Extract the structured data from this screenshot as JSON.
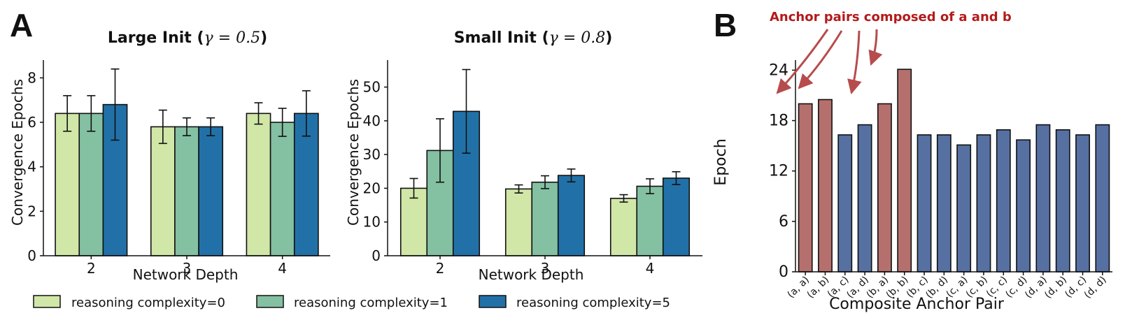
{
  "panels": {
    "A": {
      "label": "A"
    },
    "B": {
      "label": "B"
    }
  },
  "colors": {
    "complexity0": "#d1e7a8",
    "complexity1": "#84c0a2",
    "complexity5": "#2171a8",
    "highlight": "#b5706e",
    "normal": "#5670a2",
    "annotation": "#b41a1a",
    "arrow": "#b74c4c"
  },
  "legend": {
    "items": [
      "reasoning complexity=0",
      "reasoning complexity=1",
      "reasoning complexity=5"
    ]
  },
  "chart_data": [
    {
      "id": "large",
      "type": "bar",
      "title_prefix": "Large Init (",
      "title_math": "γ = 0.5",
      "title_suffix": ")",
      "xlabel": "Network Depth",
      "ylabel": "Convergence Epochs",
      "categories": [
        "2",
        "3",
        "4"
      ],
      "ylim": [
        0,
        8.8
      ],
      "yticks": [
        0,
        2,
        4,
        6,
        8
      ],
      "series": [
        {
          "name": "reasoning complexity=0",
          "values": [
            6.4,
            5.8,
            6.4
          ],
          "errors": [
            0.8,
            0.75,
            0.48
          ]
        },
        {
          "name": "reasoning complexity=1",
          "values": [
            6.4,
            5.8,
            6.0
          ],
          "errors": [
            0.8,
            0.4,
            0.63
          ]
        },
        {
          "name": "reasoning complexity=5",
          "values": [
            6.8,
            5.8,
            6.4
          ],
          "errors": [
            1.6,
            0.4,
            1.02
          ]
        }
      ]
    },
    {
      "id": "small",
      "type": "bar",
      "title_prefix": "Small Init (",
      "title_math": "γ = 0.8",
      "title_suffix": ")",
      "xlabel": "Network Depth",
      "ylabel": "Convergence Epochs",
      "categories": [
        "2",
        "3",
        "4"
      ],
      "ylim": [
        0,
        58
      ],
      "yticks": [
        0,
        10,
        20,
        30,
        40,
        50
      ],
      "series": [
        {
          "name": "reasoning complexity=0",
          "values": [
            20.0,
            19.8,
            17.0
          ],
          "errors": [
            2.9,
            1.2,
            1.1
          ]
        },
        {
          "name": "reasoning complexity=1",
          "values": [
            31.2,
            21.8,
            20.6
          ],
          "errors": [
            9.4,
            1.9,
            2.2
          ]
        },
        {
          "name": "reasoning complexity=5",
          "values": [
            42.8,
            23.8,
            23.0
          ],
          "errors": [
            12.4,
            1.9,
            1.9
          ]
        }
      ]
    },
    {
      "id": "anchor",
      "type": "bar",
      "xlabel": "Composite Anchor Pair",
      "ylabel": "Epoch",
      "annotation": "Anchor pairs composed of a and b",
      "categories": [
        "(a, a)",
        "(a, b)",
        "(a, c)",
        "(a, d)",
        "(b, a)",
        "(b, b)",
        "(b, c)",
        "(b, d)",
        "(c, a)",
        "(c, b)",
        "(c, c)",
        "(c, d)",
        "(d, a)",
        "(d, b)",
        "(d, c)",
        "(d, d)"
      ],
      "values": [
        20,
        20.5,
        16.3,
        17.5,
        20,
        24.1,
        16.3,
        16.3,
        15.1,
        16.3,
        16.9,
        15.7,
        17.5,
        16.9,
        16.3,
        17.5
      ],
      "highlighted": [
        "(a, a)",
        "(a, b)",
        "(b, a)",
        "(b, b)"
      ],
      "ylim": [
        0,
        25.2
      ],
      "yticks": [
        0,
        6,
        12,
        18,
        24
      ]
    }
  ]
}
